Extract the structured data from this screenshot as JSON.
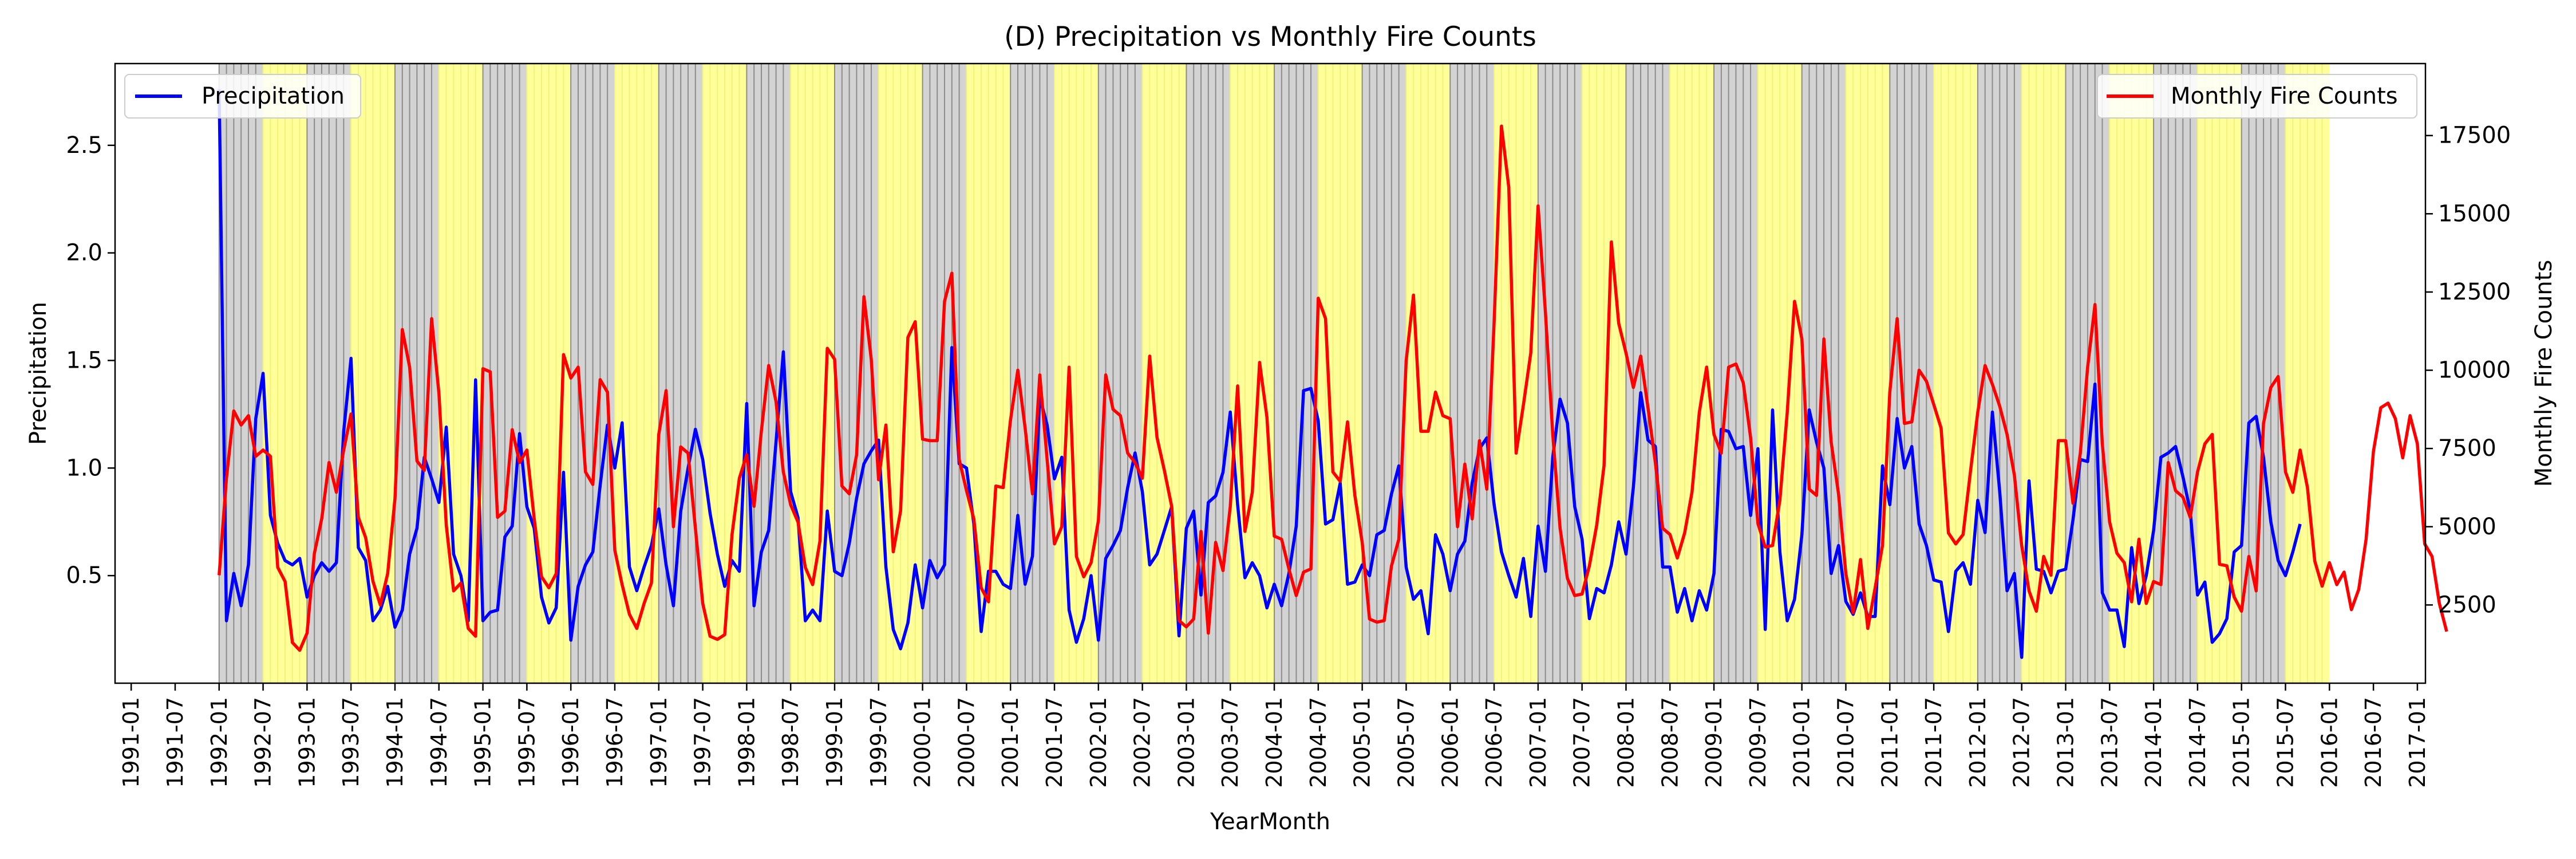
{
  "chart_data": {
    "type": "line",
    "title": "(D) Precipitation vs Monthly Fire Counts",
    "xlabel": "YearMonth",
    "ylabel_left": "Precipitation",
    "ylabel_right": "Monthly Fire Counts",
    "xlim": [
      "1990-11",
      "2017-02"
    ],
    "ylim_left": [
      0.0,
      2.88
    ],
    "ylim_right": [
      0,
      19800
    ],
    "x_ticks": [
      "1991-01",
      "1991-07",
      "1992-01",
      "1992-07",
      "1993-01",
      "1993-07",
      "1994-01",
      "1994-07",
      "1995-01",
      "1995-07",
      "1996-01",
      "1996-07",
      "1997-01",
      "1997-07",
      "1998-01",
      "1998-07",
      "1999-01",
      "1999-07",
      "2000-01",
      "2000-07",
      "2001-01",
      "2001-07",
      "2002-01",
      "2002-07",
      "2003-01",
      "2003-07",
      "2004-01",
      "2004-07",
      "2005-01",
      "2005-07",
      "2006-01",
      "2006-07",
      "2007-01",
      "2007-07",
      "2008-01",
      "2008-07",
      "2009-01",
      "2009-07",
      "2010-01",
      "2010-07",
      "2011-01",
      "2011-07",
      "2012-01",
      "2012-07",
      "2013-01",
      "2013-07",
      "2014-01",
      "2014-07",
      "2015-01",
      "2015-07",
      "2016-01",
      "2016-07",
      "2017-01"
    ],
    "y_ticks_left": [
      "0.5",
      "1.0",
      "1.5",
      "2.0",
      "2.5"
    ],
    "y_ticks_right": [
      "2500",
      "5000",
      "7500",
      "10000",
      "12500",
      "15000",
      "17500"
    ],
    "legend_left": {
      "label": "Precipitation",
      "position": "top-left"
    },
    "legend_right": {
      "label": "Monthly Fire Counts",
      "position": "top-right"
    },
    "background_bands": {
      "description": "alternating seasons per year, Jan-Jun gray, Jul-Dec yellow",
      "gray_color": "#d3d3d3",
      "yellow_color": "#ffff99",
      "start": "1992-01",
      "end": "2015-12"
    },
    "series": [
      {
        "name": "Precipitation",
        "axis": "left",
        "color": "#0000ff",
        "start": "1992-01",
        "values": [
          2.76,
          0.29,
          0.51,
          0.36,
          0.55,
          1.23,
          1.44,
          0.78,
          0.65,
          0.57,
          0.55,
          0.58,
          0.4,
          0.5,
          0.56,
          0.52,
          0.56,
          1.17,
          1.51,
          0.63,
          0.57,
          0.29,
          0.34,
          0.45,
          0.26,
          0.34,
          0.6,
          0.72,
          1.05,
          0.95,
          0.84,
          1.19,
          0.6,
          0.5,
          0.29,
          1.41,
          0.29,
          0.33,
          0.34,
          0.68,
          0.73,
          1.16,
          0.82,
          0.72,
          0.4,
          0.28,
          0.35,
          0.98,
          0.2,
          0.45,
          0.55,
          0.61,
          0.92,
          1.2,
          1.0,
          1.21,
          0.54,
          0.43,
          0.54,
          0.64,
          0.81,
          0.55,
          0.36,
          0.8,
          1.0,
          1.18,
          1.04,
          0.79,
          0.6,
          0.45,
          0.57,
          0.52,
          1.3,
          0.36,
          0.61,
          0.71,
          1.12,
          1.54,
          0.89,
          0.77,
          0.29,
          0.34,
          0.29,
          0.8,
          0.52,
          0.5,
          0.65,
          0.86,
          1.02,
          1.08,
          1.13,
          0.54,
          0.25,
          0.16,
          0.28,
          0.55,
          0.35,
          0.57,
          0.49,
          0.55,
          1.56,
          1.02,
          1.0,
          0.74,
          0.24,
          0.52,
          0.52,
          0.46,
          0.44,
          0.78,
          0.46,
          0.59,
          1.33,
          1.2,
          0.95,
          1.05,
          0.34,
          0.19,
          0.3,
          0.5,
          0.2,
          0.58,
          0.64,
          0.71,
          0.91,
          1.07,
          0.89,
          0.55,
          0.6,
          0.71,
          0.82,
          0.22,
          0.72,
          0.8,
          0.41,
          0.84,
          0.87,
          0.98,
          1.26,
          0.83,
          0.49,
          0.56,
          0.5,
          0.35,
          0.46,
          0.36,
          0.51,
          0.73,
          1.36,
          1.37,
          1.22,
          0.74,
          0.76,
          0.93,
          0.46,
          0.47,
          0.55,
          0.5,
          0.69,
          0.71,
          0.88,
          1.01,
          0.54,
          0.39,
          0.43,
          0.23,
          0.69,
          0.6,
          0.43,
          0.6,
          0.66,
          0.93,
          1.09,
          1.14,
          0.83,
          0.61,
          0.5,
          0.4,
          0.58,
          0.31,
          0.73,
          0.52,
          1.05,
          1.32,
          1.21,
          0.82,
          0.67,
          0.3,
          0.44,
          0.42,
          0.55,
          0.75,
          0.6,
          0.91,
          1.35,
          1.13,
          1.1,
          0.54,
          0.54,
          0.33,
          0.44,
          0.29,
          0.43,
          0.34,
          0.51,
          1.18,
          1.17,
          1.09,
          1.1,
          0.78,
          1.09,
          0.25,
          1.27,
          0.61,
          0.29,
          0.39,
          0.69,
          1.27,
          1.12,
          1.0,
          0.51,
          0.64,
          0.38,
          0.32,
          0.42,
          0.31,
          0.31,
          1.01,
          0.83,
          1.23,
          1.0,
          1.1,
          0.74,
          0.64,
          0.48,
          0.47,
          0.24,
          0.52,
          0.56,
          0.46,
          0.85,
          0.7,
          1.26,
          0.89,
          0.43,
          0.51,
          0.12,
          0.94,
          0.53,
          0.52,
          0.42,
          0.52,
          0.53,
          0.76,
          1.04,
          1.03,
          1.39,
          0.42,
          0.34,
          0.34,
          0.17,
          0.63,
          0.37,
          0.5,
          0.71,
          1.05,
          1.07,
          1.1,
          0.96,
          0.8,
          0.41,
          0.47,
          0.19,
          0.23,
          0.3,
          0.61,
          0.64,
          1.21,
          1.24,
          1.05,
          0.75,
          0.57,
          0.5,
          0.61,
          0.74
        ]
      },
      {
        "name": "Monthly Fire Counts",
        "axis": "right",
        "color": "#ff0000",
        "start": "1992-01",
        "values": [
          3450,
          6550,
          8700,
          8250,
          8550,
          7250,
          7450,
          7250,
          3700,
          3250,
          1300,
          1050,
          1600,
          4150,
          5250,
          7050,
          6100,
          7450,
          8600,
          5300,
          4650,
          3250,
          2500,
          3500,
          5900,
          11300,
          10100,
          7100,
          6800,
          11650,
          9250,
          5050,
          2950,
          3200,
          1750,
          1500,
          10050,
          9950,
          5300,
          5500,
          8100,
          7050,
          7450,
          5250,
          3400,
          3050,
          3500,
          10500,
          9750,
          10100,
          6750,
          6350,
          9700,
          9300,
          4250,
          3150,
          2200,
          1750,
          2550,
          3200,
          7950,
          9350,
          5000,
          7550,
          7350,
          4950,
          2550,
          1500,
          1400,
          1550,
          4750,
          6550,
          7300,
          5650,
          8050,
          10150,
          9000,
          6750,
          5700,
          5150,
          3700,
          3150,
          4550,
          10700,
          10350,
          6300,
          6050,
          7300,
          12350,
          10350,
          6500,
          8250,
          4200,
          5500,
          11050,
          11550,
          7800,
          7750,
          7750,
          12200,
          13100,
          7150,
          6150,
          5250,
          3050,
          2600,
          6300,
          6250,
          8400,
          10000,
          8150,
          6050,
          9850,
          7150,
          4450,
          5000,
          10100,
          4050,
          3400,
          3850,
          5200,
          9850,
          8750,
          8550,
          7350,
          7050,
          6550,
          10450,
          7850,
          6800,
          5650,
          2000,
          1800,
          2050,
          4850,
          1600,
          4500,
          3600,
          5650,
          9500,
          4850,
          6100,
          10250,
          8500,
          4700,
          4600,
          3650,
          2800,
          3550,
          3650,
          12300,
          11650,
          6750,
          6450,
          8350,
          6000,
          4500,
          2050,
          1950,
          2000,
          3750,
          4600,
          10300,
          12400,
          8050,
          8050,
          9300,
          8550,
          8450,
          5000,
          7000,
          5250,
          7750,
          6200,
          11550,
          17800,
          15850,
          7350,
          8900,
          10550,
          15250,
          11850,
          7950,
          4950,
          3350,
          2800,
          2850,
          3750,
          5050,
          6950,
          14100,
          11500,
          10550,
          9450,
          10450,
          8800,
          7050,
          4950,
          4750,
          4000,
          4800,
          6100,
          8650,
          10100,
          7950,
          7350,
          10100,
          10200,
          9600,
          7850,
          5100,
          4350,
          4400,
          5850,
          8650,
          12200,
          11000,
          6200,
          6000,
          11000,
          7700,
          6050,
          3500,
          2250,
          3950,
          1750,
          3050,
          4400,
          9300,
          11650,
          8300,
          8350,
          10000,
          9650,
          8900,
          8150,
          4800,
          4450,
          4750,
          6750,
          8650,
          10150,
          9550,
          8850,
          7950,
          6650,
          4400,
          2950,
          2300,
          4050,
          3450,
          7750,
          7750,
          5750,
          7350,
          10100,
          12100,
          7650,
          5150,
          4150,
          3850,
          2600,
          4600,
          2550,
          3250,
          3150,
          7050,
          6150,
          5950,
          5300,
          6750,
          7650,
          7950,
          3800,
          3750,
          2750,
          2300,
          4050,
          2950,
          8300,
          9450,
          9800,
          6750,
          6100,
          7450,
          6250,
          3900,
          3100,
          3850,
          3150,
          3550,
          2350,
          3000,
          4600,
          7400,
          8800,
          8950,
          8450,
          7200,
          8550,
          7650,
          4450,
          4050,
          2550,
          1650
        ]
      }
    ]
  }
}
